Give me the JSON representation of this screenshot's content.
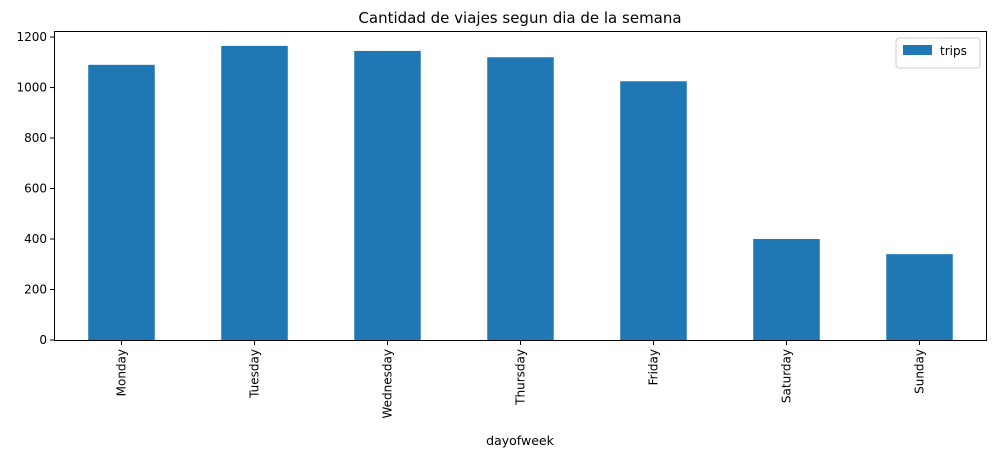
{
  "chart_data": {
    "type": "bar",
    "title": "Cantidad de viajes segun dia de la semana",
    "xlabel": "dayofweek",
    "ylabel": "",
    "categories": [
      "Monday",
      "Tuesday",
      "Wednesday",
      "Thursday",
      "Friday",
      "Saturday",
      "Sunday"
    ],
    "series": [
      {
        "name": "trips",
        "values": [
          1090,
          1165,
          1145,
          1120,
          1025,
          400,
          340
        ],
        "color": "#1f77b4"
      }
    ],
    "ylim": [
      0,
      1220
    ],
    "yticks": [
      "0",
      "200",
      "400",
      "600",
      "800",
      "1000",
      "1200"
    ],
    "grid": false,
    "legend": "top-right"
  }
}
